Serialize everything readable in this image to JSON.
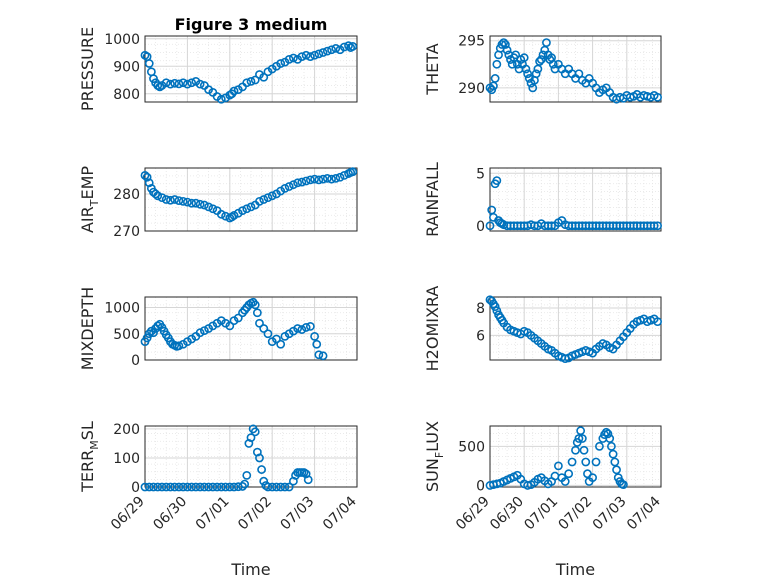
{
  "figure": {
    "title": "Figure 3 medium",
    "marker_color": "#0072BD"
  },
  "chart_data": [
    {
      "type": "scatter",
      "title": "Figure 3 medium",
      "ylabel": "PRESSURE",
      "xlabel": "",
      "xlim": [
        0,
        5
      ],
      "ylim": [
        770,
        1010
      ],
      "yticks": [
        1000,
        900,
        800
      ],
      "grid": true,
      "x": [
        0.0,
        0.05,
        0.1,
        0.15,
        0.2,
        0.25,
        0.3,
        0.35,
        0.4,
        0.5,
        0.6,
        0.7,
        0.8,
        0.9,
        1.0,
        1.1,
        1.2,
        1.3,
        1.4,
        1.5,
        1.6,
        1.7,
        1.8,
        1.9,
        2.0,
        2.05,
        2.1,
        2.2,
        2.3,
        2.4,
        2.5,
        2.6,
        2.7,
        2.8,
        2.9,
        3.0,
        3.1,
        3.2,
        3.3,
        3.4,
        3.5,
        3.6,
        3.7,
        3.8,
        3.9,
        4.0,
        4.1,
        4.2,
        4.3,
        4.4,
        4.5,
        4.6,
        4.7,
        4.8,
        4.85,
        4.9
      ],
      "y": [
        940,
        935,
        910,
        880,
        855,
        840,
        830,
        825,
        830,
        840,
        835,
        838,
        836,
        840,
        835,
        840,
        845,
        835,
        830,
        815,
        805,
        790,
        780,
        785,
        795,
        800,
        810,
        815,
        825,
        840,
        845,
        850,
        870,
        860,
        880,
        890,
        900,
        910,
        915,
        925,
        930,
        925,
        935,
        940,
        935,
        940,
        945,
        950,
        955,
        960,
        965,
        960,
        970,
        975,
        968,
        972
      ]
    },
    {
      "type": "scatter",
      "ylabel": "THETA",
      "xlabel": "",
      "xlim": [
        0,
        5
      ],
      "ylim": [
        288.5,
        295.5
      ],
      "yticks": [
        295,
        290
      ],
      "grid": true,
      "x": [
        0.0,
        0.05,
        0.1,
        0.15,
        0.2,
        0.25,
        0.3,
        0.35,
        0.4,
        0.45,
        0.5,
        0.55,
        0.6,
        0.65,
        0.7,
        0.75,
        0.8,
        0.85,
        0.9,
        0.95,
        1.0,
        1.05,
        1.1,
        1.15,
        1.2,
        1.25,
        1.3,
        1.35,
        1.4,
        1.45,
        1.5,
        1.55,
        1.6,
        1.65,
        1.7,
        1.75,
        1.8,
        1.85,
        1.9,
        2.0,
        2.1,
        2.2,
        2.3,
        2.4,
        2.5,
        2.6,
        2.7,
        2.8,
        2.9,
        3.0,
        3.1,
        3.2,
        3.3,
        3.4,
        3.5,
        3.6,
        3.7,
        3.8,
        3.9,
        4.0,
        4.1,
        4.2,
        4.3,
        4.4,
        4.5,
        4.6,
        4.7,
        4.8,
        4.9
      ],
      "y": [
        290.0,
        289.8,
        290.2,
        291.0,
        292.5,
        293.5,
        294.2,
        294.6,
        294.8,
        294.6,
        294.0,
        293.5,
        293.0,
        292.5,
        293.2,
        293.5,
        292.5,
        292.0,
        293.0,
        292.5,
        293.2,
        292.0,
        291.5,
        291.0,
        290.5,
        290.0,
        290.8,
        291.5,
        292.0,
        292.8,
        293.0,
        293.5,
        294.0,
        294.8,
        293.5,
        293.0,
        293.2,
        292.5,
        292.0,
        292.5,
        292.0,
        291.5,
        292.0,
        291.5,
        291.0,
        291.5,
        290.8,
        290.5,
        291.0,
        290.5,
        290.0,
        289.5,
        289.8,
        290.0,
        289.5,
        289.0,
        288.8,
        289.0,
        288.9,
        289.2,
        289.0,
        289.1,
        289.3,
        289.0,
        289.2,
        289.1,
        289.0,
        289.2,
        289.0
      ]
    },
    {
      "type": "scatter",
      "ylabel": "AIR_TEMP",
      "ylabel_main": "AIR",
      "ylabel_sub": "T",
      "ylabel_rest": "EMP",
      "xlabel": "",
      "xlim": [
        0,
        5
      ],
      "ylim": [
        270,
        287
      ],
      "yticks": [
        280,
        270
      ],
      "grid": true,
      "x": [
        0.0,
        0.05,
        0.1,
        0.15,
        0.2,
        0.25,
        0.3,
        0.4,
        0.5,
        0.6,
        0.7,
        0.8,
        0.9,
        1.0,
        1.1,
        1.2,
        1.3,
        1.4,
        1.5,
        1.6,
        1.7,
        1.8,
        1.9,
        2.0,
        2.05,
        2.1,
        2.2,
        2.3,
        2.4,
        2.5,
        2.6,
        2.7,
        2.8,
        2.9,
        3.0,
        3.1,
        3.2,
        3.3,
        3.4,
        3.5,
        3.6,
        3.7,
        3.8,
        3.9,
        4.0,
        4.1,
        4.2,
        4.3,
        4.4,
        4.5,
        4.6,
        4.7,
        4.8,
        4.85,
        4.9
      ],
      "y": [
        285,
        284.5,
        283,
        281.5,
        280.5,
        280,
        279.5,
        279,
        278.5,
        278.3,
        278.5,
        278.2,
        278,
        277.8,
        277.5,
        277.5,
        277.2,
        277,
        276.5,
        276,
        275.5,
        274.5,
        274,
        273.5,
        273.8,
        274.2,
        274.8,
        275.5,
        276,
        276.5,
        277,
        278,
        278.5,
        279,
        279.5,
        280,
        280.8,
        281.5,
        282,
        282.5,
        283,
        283.2,
        283.5,
        283.8,
        284,
        283.8,
        284,
        284.2,
        284,
        284.2,
        284.5,
        285,
        285.5,
        285.8,
        286
      ]
    },
    {
      "type": "scatter",
      "ylabel": "RAINFALL",
      "xlabel": "",
      "xlim": [
        0,
        5
      ],
      "ylim": [
        -0.5,
        5.5
      ],
      "yticks": [
        5,
        0
      ],
      "grid": true,
      "x": [
        0.0,
        0.05,
        0.1,
        0.15,
        0.2,
        0.25,
        0.3,
        0.35,
        0.4,
        0.5,
        0.6,
        0.7,
        0.8,
        0.9,
        1.0,
        1.1,
        1.2,
        1.3,
        1.4,
        1.5,
        1.6,
        1.7,
        1.8,
        1.9,
        2.0,
        2.1,
        2.2,
        2.3,
        2.4,
        2.5,
        2.6,
        2.7,
        2.8,
        2.9,
        3.0,
        3.1,
        3.2,
        3.3,
        3.4,
        3.5,
        3.6,
        3.7,
        3.8,
        3.9,
        4.0,
        4.1,
        4.2,
        4.3,
        4.4,
        4.5,
        4.6,
        4.7,
        4.8,
        4.9
      ],
      "y": [
        0,
        1.5,
        0.8,
        4.0,
        4.3,
        0.5,
        0.3,
        0.2,
        0.1,
        0,
        0,
        0,
        0,
        0,
        0,
        0,
        0.1,
        0,
        0,
        0.2,
        0,
        0,
        0,
        0,
        0.3,
        0.5,
        0.1,
        0,
        0,
        0,
        0,
        0,
        0,
        0,
        0,
        0,
        0,
        0,
        0,
        0,
        0,
        0,
        0,
        0,
        0,
        0,
        0,
        0,
        0,
        0,
        0,
        0,
        0,
        0
      ]
    },
    {
      "type": "scatter",
      "ylabel": "MIXDEPTH",
      "xlabel": "",
      "xlim": [
        0,
        5
      ],
      "ylim": [
        0,
        1200
      ],
      "yticks": [
        1000,
        500,
        0
      ],
      "grid": true,
      "x": [
        0.0,
        0.05,
        0.1,
        0.15,
        0.2,
        0.25,
        0.3,
        0.35,
        0.4,
        0.45,
        0.5,
        0.55,
        0.6,
        0.65,
        0.7,
        0.75,
        0.8,
        0.9,
        1.0,
        1.1,
        1.2,
        1.3,
        1.4,
        1.5,
        1.6,
        1.7,
        1.8,
        1.9,
        2.0,
        2.1,
        2.2,
        2.3,
        2.35,
        2.4,
        2.45,
        2.5,
        2.55,
        2.6,
        2.65,
        2.7,
        2.8,
        2.9,
        3.0,
        3.1,
        3.2,
        3.3,
        3.4,
        3.5,
        3.6,
        3.7,
        3.8,
        3.9,
        4.0,
        4.05,
        4.1,
        4.2
      ],
      "y": [
        350,
        420,
        500,
        550,
        520,
        600,
        650,
        680,
        620,
        550,
        480,
        420,
        350,
        300,
        280,
        260,
        270,
        300,
        350,
        400,
        450,
        520,
        560,
        600,
        650,
        700,
        750,
        700,
        650,
        750,
        800,
        900,
        950,
        1000,
        1050,
        1080,
        1100,
        1050,
        900,
        700,
        600,
        500,
        350,
        400,
        300,
        450,
        500,
        550,
        600,
        580,
        620,
        640,
        450,
        300,
        100,
        80
      ]
    },
    {
      "type": "scatter",
      "ylabel": "H2OMIXRA",
      "xlabel": "",
      "xlim": [
        0,
        5
      ],
      "ylim": [
        4.2,
        8.8
      ],
      "yticks": [
        8,
        6
      ],
      "grid": true,
      "x": [
        0.0,
        0.05,
        0.1,
        0.15,
        0.2,
        0.25,
        0.3,
        0.35,
        0.4,
        0.5,
        0.6,
        0.7,
        0.8,
        0.9,
        1.0,
        1.1,
        1.2,
        1.3,
        1.4,
        1.5,
        1.6,
        1.7,
        1.8,
        1.9,
        2.0,
        2.1,
        2.2,
        2.3,
        2.4,
        2.5,
        2.6,
        2.7,
        2.8,
        2.9,
        3.0,
        3.1,
        3.2,
        3.3,
        3.4,
        3.5,
        3.6,
        3.7,
        3.8,
        3.9,
        4.0,
        4.1,
        4.2,
        4.3,
        4.4,
        4.5,
        4.6,
        4.7,
        4.8,
        4.9
      ],
      "y": [
        8.6,
        8.5,
        8.3,
        8.1,
        7.8,
        7.5,
        7.3,
        7.1,
        6.9,
        6.6,
        6.4,
        6.3,
        6.2,
        6.1,
        6.3,
        6.2,
        6.0,
        5.8,
        5.6,
        5.4,
        5.2,
        5.0,
        4.9,
        4.7,
        4.5,
        4.4,
        4.3,
        4.35,
        4.5,
        4.6,
        4.7,
        4.8,
        4.9,
        4.8,
        4.7,
        5.0,
        5.2,
        5.4,
        5.3,
        5.1,
        5.0,
        5.3,
        5.6,
        5.9,
        6.2,
        6.5,
        6.8,
        7.0,
        7.1,
        7.2,
        7.0,
        7.1,
        7.2,
        7.0
      ]
    },
    {
      "type": "scatter",
      "ylabel": "TERR_MSL",
      "ylabel_main": "TERR",
      "ylabel_sub": "M",
      "ylabel_rest": "SL",
      "xlabel": "Time",
      "xlim": [
        0,
        5
      ],
      "ylim": [
        0,
        210
      ],
      "yticks": [
        200,
        100,
        0
      ],
      "grid": true,
      "xticklabels": [
        "06/29",
        "06/30",
        "07/01",
        "07/02",
        "07/03",
        "07/04"
      ],
      "x": [
        0.0,
        0.1,
        0.2,
        0.3,
        0.4,
        0.5,
        0.6,
        0.7,
        0.8,
        0.9,
        1.0,
        1.1,
        1.2,
        1.3,
        1.4,
        1.5,
        1.6,
        1.7,
        1.8,
        1.9,
        2.0,
        2.1,
        2.2,
        2.3,
        2.35,
        2.4,
        2.45,
        2.5,
        2.55,
        2.6,
        2.65,
        2.7,
        2.75,
        2.8,
        2.85,
        2.9,
        3.0,
        3.1,
        3.2,
        3.3,
        3.4,
        3.5,
        3.55,
        3.6,
        3.65,
        3.7,
        3.75,
        3.8,
        3.85
      ],
      "y": [
        0,
        0,
        0,
        0,
        0,
        0,
        0,
        0,
        0,
        0,
        0,
        0,
        0,
        0,
        0,
        0,
        0,
        0,
        0,
        0,
        0,
        0,
        1,
        2,
        10,
        40,
        150,
        170,
        200,
        190,
        120,
        100,
        60,
        20,
        5,
        0,
        0,
        0,
        0,
        0,
        0,
        20,
        40,
        50,
        50,
        50,
        50,
        45,
        25
      ]
    },
    {
      "type": "scatter",
      "ylabel": "SUN_FLUX",
      "ylabel_main": "SUN",
      "ylabel_sub": "F",
      "ylabel_rest": "LUX",
      "xlabel": "Time",
      "xlim": [
        0,
        5
      ],
      "ylim": [
        -20,
        760
      ],
      "yticks": [
        500,
        0
      ],
      "grid": true,
      "xticklabels": [
        "06/29",
        "06/30",
        "07/01",
        "07/02",
        "07/03",
        "07/04"
      ],
      "x": [
        0.0,
        0.1,
        0.2,
        0.3,
        0.4,
        0.5,
        0.6,
        0.7,
        0.8,
        0.9,
        1.0,
        1.1,
        1.2,
        1.3,
        1.4,
        1.5,
        1.6,
        1.7,
        1.8,
        1.9,
        2.0,
        2.1,
        2.2,
        2.3,
        2.4,
        2.5,
        2.55,
        2.6,
        2.65,
        2.7,
        2.75,
        2.8,
        2.85,
        2.9,
        3.0,
        3.1,
        3.2,
        3.3,
        3.35,
        3.4,
        3.45,
        3.5,
        3.55,
        3.6,
        3.65,
        3.7,
        3.75,
        3.8,
        3.85,
        3.9
      ],
      "y": [
        0,
        10,
        20,
        30,
        50,
        70,
        90,
        110,
        130,
        80,
        20,
        0,
        10,
        40,
        80,
        100,
        60,
        20,
        50,
        120,
        250,
        100,
        50,
        150,
        300,
        450,
        550,
        600,
        700,
        600,
        450,
        300,
        150,
        50,
        100,
        300,
        500,
        600,
        650,
        680,
        660,
        600,
        500,
        400,
        300,
        200,
        100,
        50,
        20,
        10
      ]
    }
  ]
}
